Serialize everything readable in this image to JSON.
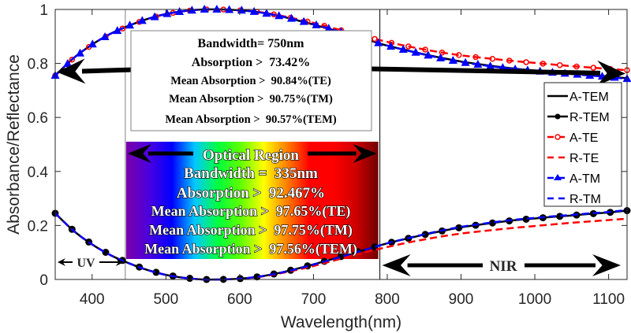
{
  "chart_data": {
    "type": "line",
    "xlabel": "Wavelength(nm)",
    "ylabel": "Absorbance/Reflectance",
    "xlim": [
      350,
      1125
    ],
    "ylim": [
      0,
      1
    ],
    "xticks": [
      400,
      500,
      600,
      700,
      800,
      900,
      1000,
      1100
    ],
    "yticks": [
      0,
      0.2,
      0.4,
      0.6,
      0.8,
      1
    ],
    "ytick_labels": [
      "0",
      "0.2",
      "0.4",
      "0.6",
      "0.8",
      "1"
    ],
    "grid": false,
    "legend_position": "right",
    "x": [
      350,
      375,
      400,
      425,
      450,
      475,
      500,
      525,
      550,
      575,
      600,
      625,
      650,
      675,
      700,
      725,
      750,
      775,
      800,
      825,
      850,
      875,
      900,
      925,
      950,
      975,
      1000,
      1025,
      1050,
      1075,
      1100,
      1125
    ],
    "series": [
      {
        "name": "A-TEM",
        "color": "#000000",
        "style": "solid",
        "marker": "none",
        "values": [
          0.755,
          0.82,
          0.87,
          0.91,
          0.94,
          0.965,
          0.983,
          0.994,
          1.0,
          1.0,
          0.997,
          0.99,
          0.978,
          0.962,
          0.944,
          0.925,
          0.905,
          0.886,
          0.866,
          0.85,
          0.834,
          0.82,
          0.807,
          0.797,
          0.788,
          0.78,
          0.774,
          0.768,
          0.763,
          0.757,
          0.752,
          0.745
        ]
      },
      {
        "name": "R-TEM",
        "color": "#000000",
        "style": "solid",
        "marker": "circle",
        "values": [
          0.245,
          0.18,
          0.13,
          0.09,
          0.06,
          0.035,
          0.017,
          0.006,
          0.0,
          0.0,
          0.003,
          0.01,
          0.022,
          0.038,
          0.056,
          0.075,
          0.095,
          0.114,
          0.134,
          0.15,
          0.166,
          0.18,
          0.193,
          0.203,
          0.212,
          0.22,
          0.226,
          0.232,
          0.237,
          0.243,
          0.248,
          0.255
        ]
      },
      {
        "name": "A-TE",
        "color": "#ff0000",
        "style": "dashed",
        "marker": "circle-open",
        "values": [
          0.755,
          0.82,
          0.87,
          0.91,
          0.94,
          0.965,
          0.983,
          0.994,
          1.0,
          1.0,
          0.997,
          0.991,
          0.98,
          0.966,
          0.95,
          0.932,
          0.914,
          0.896,
          0.88,
          0.865,
          0.852,
          0.84,
          0.83,
          0.822,
          0.815,
          0.808,
          0.802,
          0.796,
          0.79,
          0.785,
          0.78,
          0.775
        ]
      },
      {
        "name": "R-TE",
        "color": "#ff0000",
        "style": "dashed",
        "marker": "none",
        "values": [
          0.245,
          0.18,
          0.13,
          0.09,
          0.06,
          0.035,
          0.017,
          0.006,
          0.0,
          0.0,
          0.003,
          0.009,
          0.02,
          0.034,
          0.05,
          0.068,
          0.086,
          0.104,
          0.12,
          0.135,
          0.148,
          0.16,
          0.17,
          0.178,
          0.185,
          0.192,
          0.198,
          0.204,
          0.21,
          0.215,
          0.22,
          0.225
        ]
      },
      {
        "name": "A-TM",
        "color": "#0000ff",
        "style": "dashed",
        "marker": "triangle",
        "values": [
          0.755,
          0.82,
          0.87,
          0.91,
          0.94,
          0.965,
          0.983,
          0.994,
          1.0,
          1.0,
          0.997,
          0.99,
          0.978,
          0.963,
          0.945,
          0.926,
          0.906,
          0.886,
          0.866,
          0.849,
          0.833,
          0.818,
          0.805,
          0.795,
          0.786,
          0.778,
          0.772,
          0.766,
          0.761,
          0.755,
          0.75,
          0.743
        ]
      },
      {
        "name": "R-TM",
        "color": "#0000ff",
        "style": "dashed",
        "marker": "none",
        "values": [
          0.245,
          0.18,
          0.13,
          0.09,
          0.06,
          0.035,
          0.017,
          0.006,
          0.0,
          0.0,
          0.003,
          0.01,
          0.022,
          0.037,
          0.055,
          0.074,
          0.094,
          0.114,
          0.134,
          0.151,
          0.167,
          0.182,
          0.195,
          0.205,
          0.214,
          0.222,
          0.228,
          0.234,
          0.239,
          0.245,
          0.25,
          0.257
        ]
      }
    ],
    "regions": {
      "uv": {
        "label": "UV",
        "from": 350,
        "to": 445
      },
      "optical": {
        "label": "Optical Region",
        "from": 445,
        "to": 790
      },
      "nir": {
        "label": "NIR",
        "from": 790,
        "to": 1125
      }
    },
    "annotations": {
      "full_band": {
        "lines": [
          "Bandwidth= 750nm",
          "Absorption >  73.42%",
          "Mean Absorption >  90.84%(TE)",
          "Mean Absorption >  90.75%(TM)",
          "Mean Absorption >  90.57%(TEM)"
        ],
        "arrow_y": 0.78
      },
      "optical_band": {
        "title": "Optical Region",
        "lines": [
          "Bandwidth =  335nm",
          "Absorption >  92.467%",
          "Mean Absorption >  97.65%(TE)",
          "Mean Absorption >  97.75%(TM)",
          "Mean Absorption >  97.56%(TEM)"
        ]
      }
    },
    "spectrum_colors": [
      "#7a00a8",
      "#4b00e0",
      "#0000ff",
      "#00c8ff",
      "#00ff40",
      "#60ff00",
      "#ffff00",
      "#ff8000",
      "#ff0000",
      "#ff0000",
      "#d00000",
      "#700000"
    ]
  }
}
